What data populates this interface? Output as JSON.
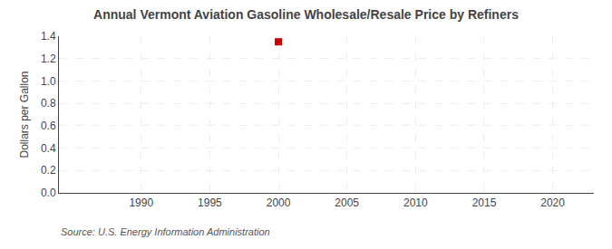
{
  "chart_data": {
    "type": "scatter",
    "title": "Annual Vermont Aviation Gasoline Wholesale/Resale Price by Refiners",
    "ylabel": "Dollars per Gallon",
    "annotations": [
      "Source: U.S. Energy Information Administration"
    ],
    "x": [
      2000
    ],
    "values": [
      1.35
    ],
    "color": "#cc0000",
    "marker": "square",
    "xlim": [
      1984,
      2023
    ],
    "xticks": [
      1990,
      1995,
      2000,
      2005,
      2010,
      2015,
      2020
    ],
    "ylim": [
      0.0,
      1.4
    ],
    "yticks": [
      {
        "value": 0,
        "label": "0.0"
      },
      0.2,
      0.4,
      0.6,
      0.8,
      {
        "value": 1,
        "label": "1.0"
      },
      1.2,
      1.4
    ],
    "grid": true
  }
}
